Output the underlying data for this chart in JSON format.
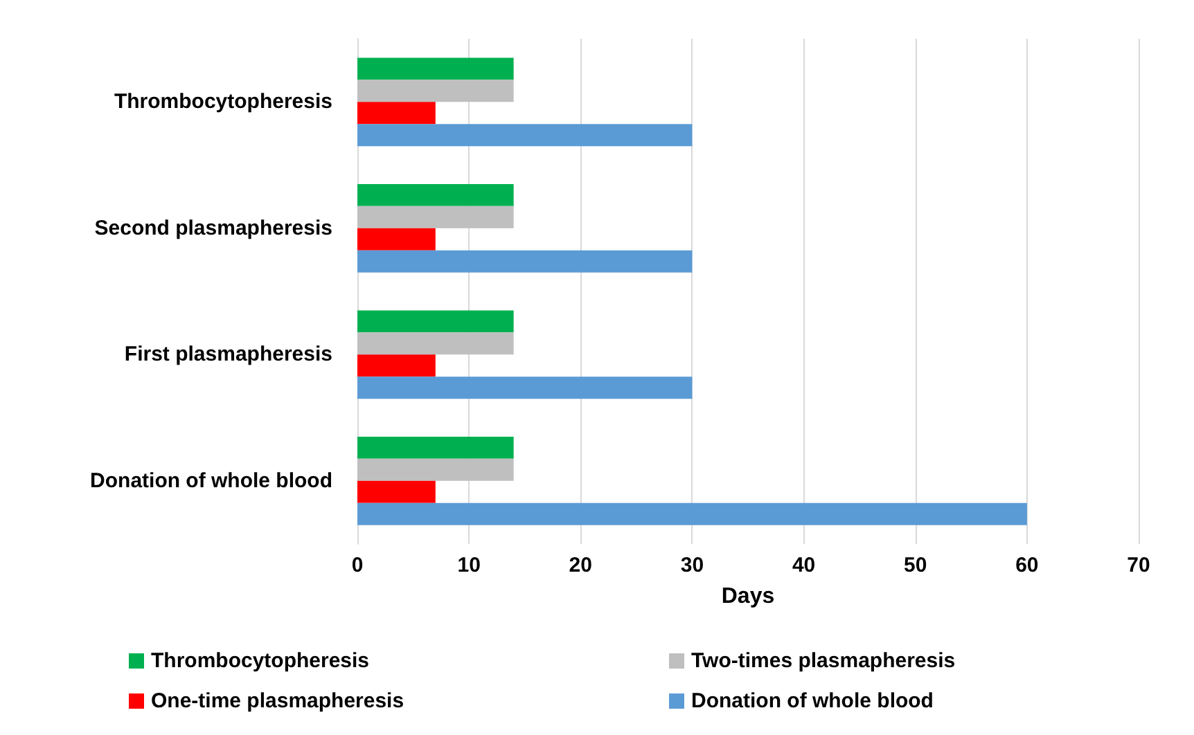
{
  "chart_data": {
    "type": "bar",
    "orientation": "horizontal",
    "xlabel": "Days",
    "categories": [
      "Thrombocytopheresis",
      "Second plasmapheresis",
      "First plasmapheresis",
      "Donation of whole blood"
    ],
    "series": [
      {
        "name": "Thrombocytopheresis",
        "color": "#00b050",
        "values": [
          14,
          14,
          14,
          14
        ]
      },
      {
        "name": "Two-times plasmapheresis",
        "color": "#bfbfbf",
        "values": [
          14,
          14,
          14,
          14
        ]
      },
      {
        "name": "One-time plasmapheresis",
        "color": "#ff0000",
        "values": [
          7,
          7,
          7,
          7
        ]
      },
      {
        "name": "Donation of whole blood",
        "color": "#5b9bd5",
        "values": [
          30,
          30,
          30,
          60
        ]
      }
    ],
    "xlim": [
      0,
      70
    ],
    "xticks": [
      0,
      10,
      20,
      30,
      40,
      50,
      60,
      70
    ],
    "grid": "x",
    "legend": "bottom"
  }
}
